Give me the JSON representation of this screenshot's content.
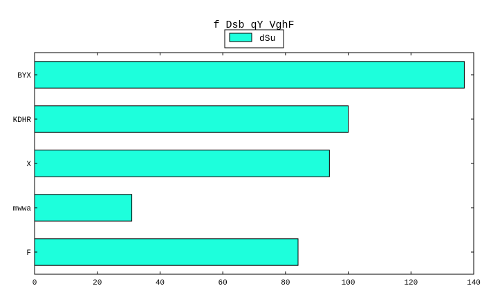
{
  "chart_data": {
    "type": "bar",
    "orientation": "horizontal",
    "title": "f Dsb qY VghF",
    "xlabel": "",
    "ylabel": "",
    "categories": [
      "BYX",
      "KDHR",
      "X",
      "mwwa",
      "F"
    ],
    "series": [
      {
        "name": "dSu",
        "values": [
          137,
          100,
          94,
          31,
          84
        ],
        "color": "#1dffdc"
      }
    ],
    "xlim": [
      0,
      140
    ],
    "xticks": [
      0,
      20,
      40,
      60,
      80,
      100,
      120,
      140
    ],
    "grid": false,
    "legend_position": "top-center"
  }
}
